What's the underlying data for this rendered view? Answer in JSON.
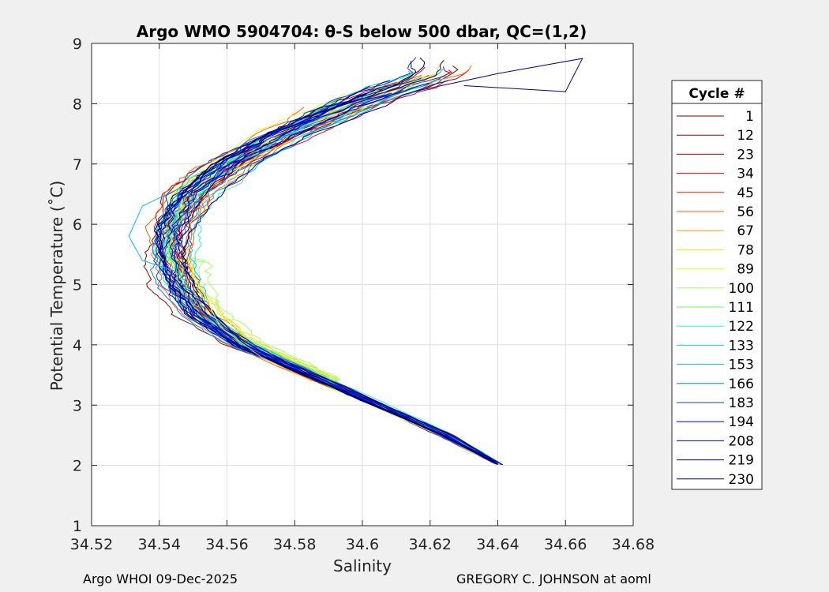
{
  "chart_data": {
    "type": "line",
    "title": "Argo WMO 5904704: θ-S below 500 dbar,  QC=(1,2)",
    "xlabel": "Salinity",
    "ylabel": "Potential Temperature (˚C)",
    "xlim": [
      34.52,
      34.68
    ],
    "ylim": [
      1,
      9
    ],
    "xticks": [
      34.52,
      34.54,
      34.56,
      34.58,
      34.6,
      34.62,
      34.64,
      34.66,
      34.68
    ],
    "xtick_labels": [
      "34.52",
      "34.54",
      "34.56",
      "34.58",
      "34.6",
      "34.62",
      "34.64",
      "34.66",
      "34.68"
    ],
    "yticks": [
      1,
      2,
      3,
      4,
      5,
      6,
      7,
      8,
      9
    ],
    "ytick_labels": [
      "1",
      "2",
      "3",
      "4",
      "5",
      "6",
      "7",
      "8",
      "9"
    ],
    "grid": true,
    "legend": {
      "title": "Cycle #",
      "placement": "right, outside plot",
      "entries": [
        {
          "label": "1",
          "color": "#800000"
        },
        {
          "label": "12",
          "color": "#a00000"
        },
        {
          "label": "23",
          "color": "#c00000"
        },
        {
          "label": "34",
          "color": "#e00000"
        },
        {
          "label": "45",
          "color": "#ff2000"
        },
        {
          "label": "56",
          "color": "#ff6000"
        },
        {
          "label": "67",
          "color": "#ffa000"
        },
        {
          "label": "78",
          "color": "#ffe000"
        },
        {
          "label": "89",
          "color": "#e0ff20"
        },
        {
          "label": "100",
          "color": "#a0ff60"
        },
        {
          "label": "111",
          "color": "#60ff60"
        },
        {
          "label": "122",
          "color": "#20ffc0"
        },
        {
          "label": "133",
          "color": "#00e0e0"
        },
        {
          "label": "153",
          "color": "#00c0ff"
        },
        {
          "label": "166",
          "color": "#0080ff"
        },
        {
          "label": "183",
          "color": "#0040ff"
        },
        {
          "label": "194",
          "color": "#0000ff"
        },
        {
          "label": "208",
          "color": "#0000c0"
        },
        {
          "label": "219",
          "color": "#000090"
        },
        {
          "label": "230",
          "color": "#000070"
        }
      ]
    },
    "envelope": {
      "temperature": [
        2.0,
        2.5,
        3.0,
        3.5,
        4.0,
        4.5,
        5.0,
        5.5,
        6.0,
        6.5,
        7.0,
        7.5,
        8.0,
        8.5
      ],
      "salinity_center": [
        34.641,
        34.625,
        34.605,
        34.585,
        34.565,
        34.552,
        34.546,
        34.544,
        34.545,
        34.55,
        34.562,
        34.578,
        34.598,
        34.622
      ],
      "spread": [
        0.001,
        0.002,
        0.002,
        0.003,
        0.004,
        0.005,
        0.006,
        0.006,
        0.006,
        0.007,
        0.007,
        0.008,
        0.009,
        0.01
      ]
    },
    "annotations": {
      "cyan_excursion": {
        "salinity": [
          34.546,
          34.535,
          34.531,
          34.535,
          34.546
        ],
        "temperature": [
          6.6,
          6.3,
          5.8,
          5.4,
          5.2
        ]
      },
      "yellow_offset": {
        "salinity": [
          34.585,
          34.57,
          34.558,
          34.549
        ],
        "temperature": [
          3.4,
          3.8,
          4.3,
          5.3
        ]
      },
      "high_salinity_tail": {
        "salinity": [
          34.615,
          34.64,
          34.665,
          34.66,
          34.63
        ],
        "temperature": [
          8.2,
          8.5,
          8.75,
          8.2,
          8.3
        ]
      }
    }
  },
  "footer": {
    "left": "Argo WHOI 09-Dec-2025",
    "right": "GREGORY C. JOHNSON at aoml"
  }
}
